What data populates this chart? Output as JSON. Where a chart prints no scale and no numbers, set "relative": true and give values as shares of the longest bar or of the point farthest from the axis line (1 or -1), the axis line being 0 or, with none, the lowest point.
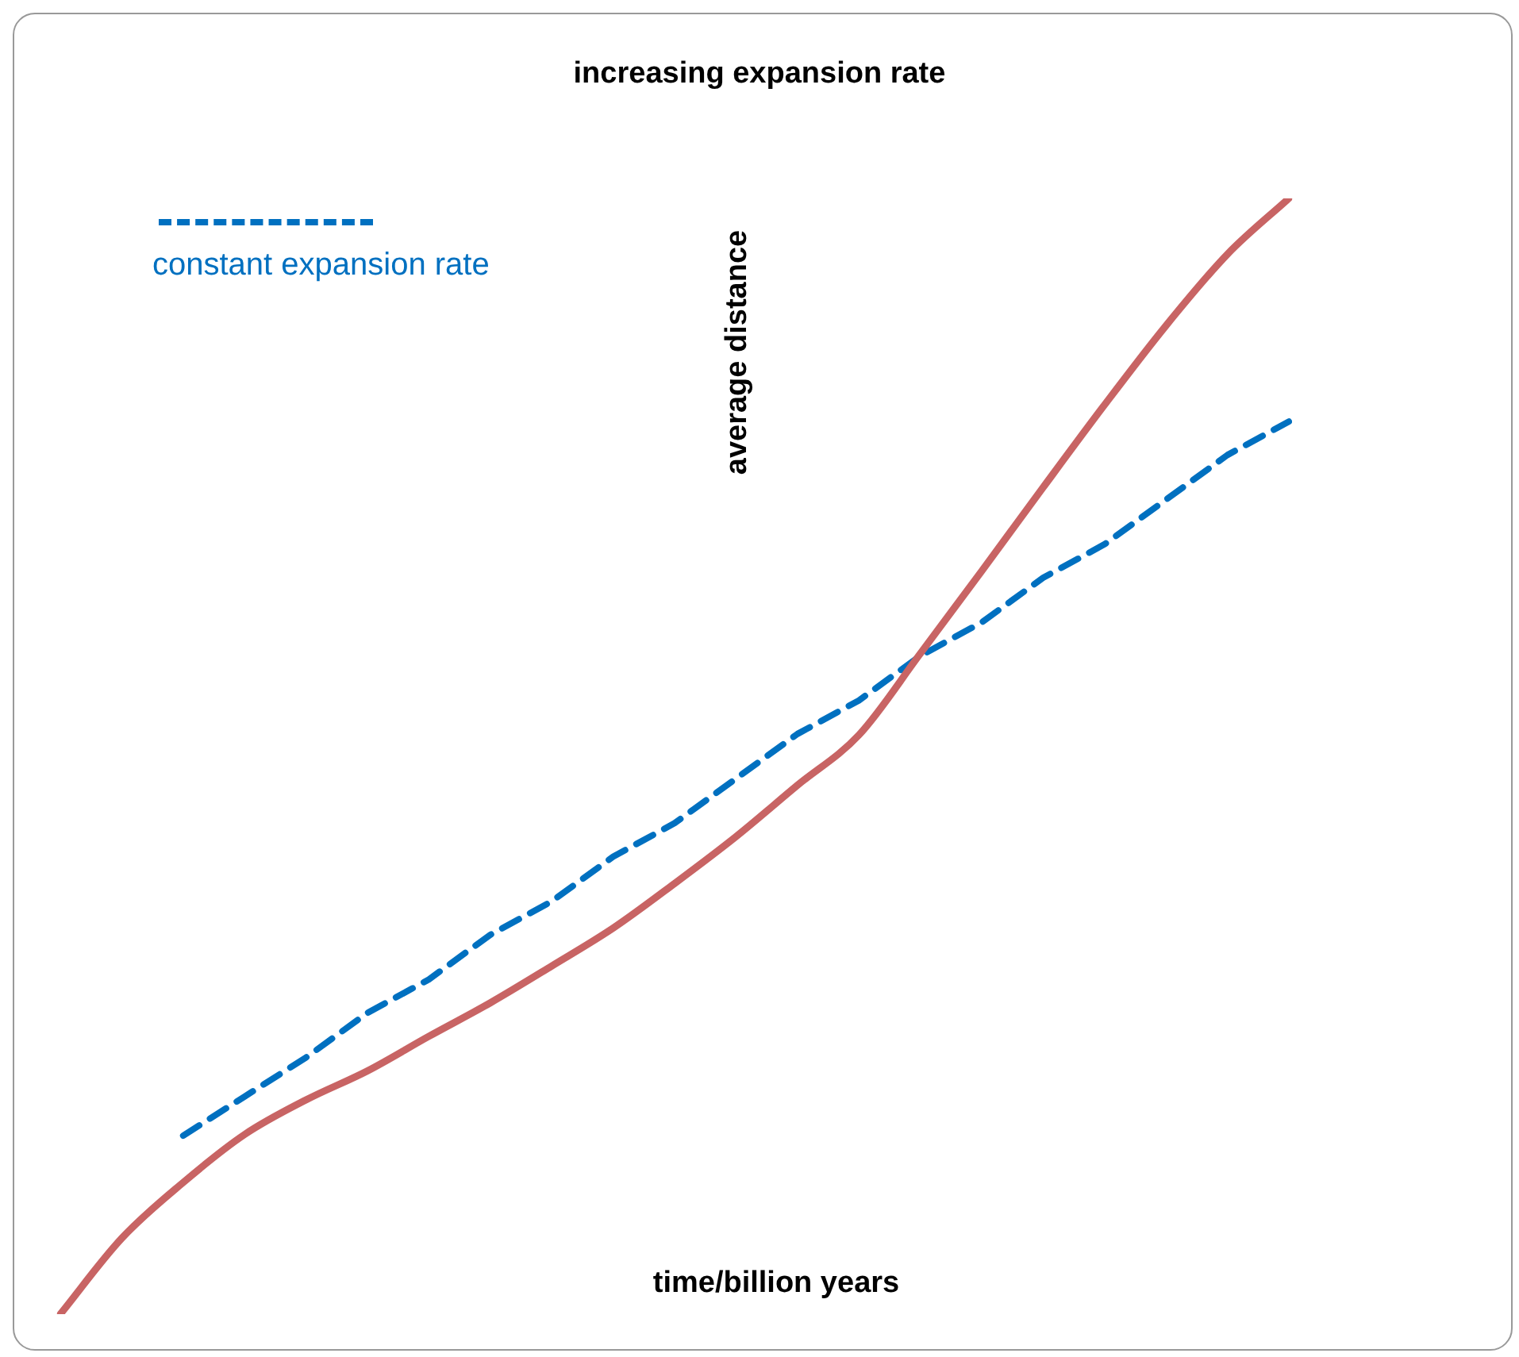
{
  "chart_data": {
    "type": "line",
    "relative": true,
    "title": "increasing expansion rate",
    "xlabel": "time/billion years",
    "ylabel": "average distance",
    "legend": "top left",
    "tick_labels": false,
    "marker": "none",
    "categories": [
      null,
      null,
      null,
      null,
      null,
      null,
      null,
      null,
      null,
      null,
      null,
      null,
      null,
      null,
      null,
      null,
      null,
      null,
      null,
      null,
      null
    ],
    "series": [
      {
        "color": "#c86464",
        "line_style": "solid",
        "values": [
          0,
          0.068,
          0.118,
          0.161,
          0.192,
          0.218,
          0.249,
          0.279,
          0.312,
          0.346,
          0.386,
          0.428,
          0.474,
          0.519,
          0.592,
          0.666,
          0.741,
          0.815,
          0.886,
          0.95,
          1
        ]
      },
      {
        "name": "constant expansion rate",
        "color": "#0070c0",
        "line_style": "dashed",
        "values": [
          null,
          null,
          0.16,
          0.195,
          0.23,
          0.27,
          0.3,
          0.34,
          0.37,
          0.41,
          0.44,
          0.48,
          0.52,
          0.55,
          0.59,
          0.62,
          0.66,
          0.69,
          0.73,
          0.77,
          0.8
        ]
      }
    ]
  }
}
